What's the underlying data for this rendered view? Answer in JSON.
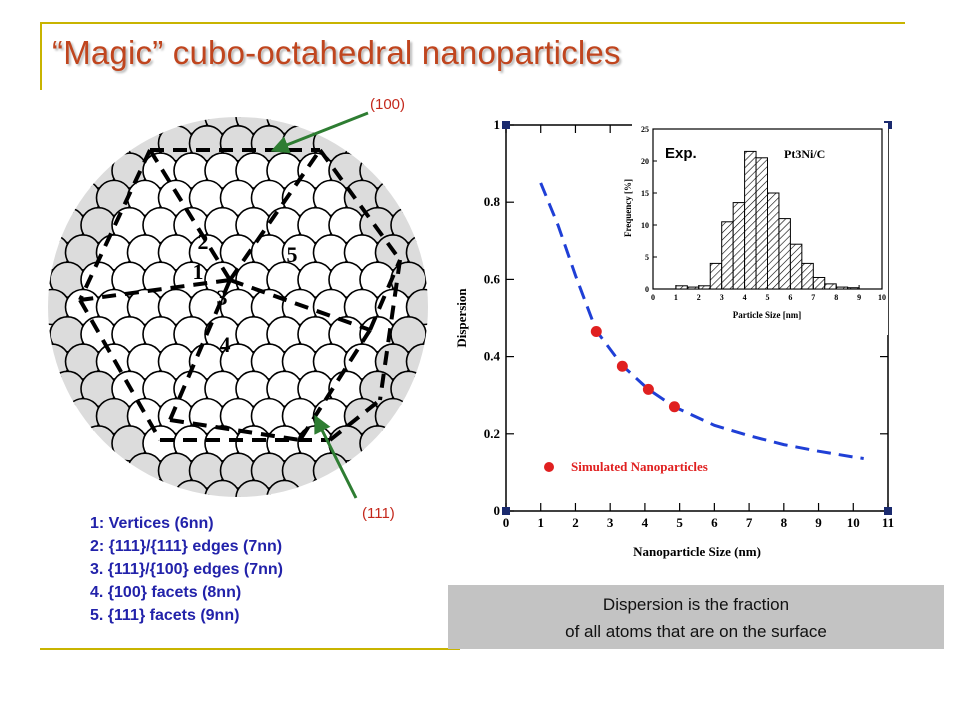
{
  "slide": {
    "title": "“Magic” cubo-octahedral nanoparticles",
    "facet_top": "(100)",
    "facet_bottom": "(111)",
    "legend": [
      "1: Vertices (6nn)",
      "2: {111}/{111} edges (7nn)",
      "3. {111}/{100} edges (7nn)",
      "4. {100} facets (8nn)",
      "5. {111} facets (9nn)"
    ],
    "site_numbers": [
      "1",
      "2",
      "3",
      "4",
      "5"
    ],
    "caption_line1": "Dispersion is the fraction",
    "caption_line2": "of all atoms that are on the surface",
    "colors": {
      "title": "#c0451e",
      "frame": "#c8b400",
      "arrow": "#2e7d32",
      "legend_text": "#2222aa",
      "facet_text": "#c4281c"
    }
  },
  "chart_data": [
    {
      "type": "scatter",
      "xlabel": "Nanoparticle Size (nm)",
      "ylabel": "Dispersion",
      "xlim": [
        0,
        11
      ],
      "ylim": [
        0,
        1
      ],
      "xticks": [
        0,
        1,
        2,
        3,
        4,
        5,
        6,
        7,
        8,
        9,
        10,
        11
      ],
      "yticks": [
        0,
        0.2,
        0.4,
        0.6,
        0.8,
        1
      ],
      "x_tick_labels": [
        "0",
        "1",
        "2",
        "3",
        "4",
        "5",
        "6",
        "7",
        "8",
        "9",
        "10",
        "11"
      ],
      "y_tick_labels": [
        "0",
        "0.2",
        "0.4",
        "0.6",
        "0.8",
        "1"
      ],
      "series": [
        {
          "name": "Simulated Nanoparticles",
          "kind": "scatter",
          "color": "#e02020",
          "x": [
            2.6,
            3.35,
            4.1,
            4.85
          ],
          "y": [
            0.465,
            0.375,
            0.315,
            0.27
          ]
        },
        {
          "kind": "dashed-line",
          "color": "#1f3fd6",
          "x": [
            1.0,
            1.5,
            2.0,
            2.6,
            3.35,
            4.1,
            4.85,
            6.0,
            7.0,
            8.0,
            9.0,
            10.0,
            10.3
          ],
          "y": [
            0.85,
            0.74,
            0.61,
            0.467,
            0.377,
            0.315,
            0.27,
            0.222,
            0.195,
            0.172,
            0.155,
            0.14,
            0.136
          ]
        }
      ],
      "legend": {
        "placement": "bottom-center"
      },
      "grid": false
    },
    {
      "type": "bar",
      "inset": true,
      "title": "Exp.",
      "subtitle": "Pt3Ni/C",
      "xlabel": "Particle Size [nm]",
      "ylabel": "Frequency [%]",
      "xlim": [
        0,
        10
      ],
      "ylim": [
        0,
        25
      ],
      "xticks": [
        0,
        1,
        2,
        3,
        4,
        5,
        6,
        7,
        8,
        9,
        10
      ],
      "yticks": [
        0,
        5,
        10,
        15,
        20,
        25
      ],
      "x_tick_labels": [
        "0",
        "1",
        "2",
        "3",
        "4",
        "5",
        "6",
        "7",
        "8",
        "9",
        "10"
      ],
      "y_tick_labels": [
        "0",
        "5",
        "10",
        "15",
        "20",
        "25"
      ],
      "bin_width": 0.5,
      "bin_starts": [
        1.0,
        1.5,
        2.0,
        2.5,
        3.0,
        3.5,
        4.0,
        4.5,
        5.0,
        5.5,
        6.0,
        6.5,
        7.0,
        7.5,
        8.0,
        8.5
      ],
      "values": [
        0.5,
        0.3,
        0.5,
        4.0,
        10.5,
        13.5,
        21.5,
        20.5,
        15.0,
        11.0,
        7.0,
        4.0,
        1.8,
        0.8,
        0.3,
        0.2
      ],
      "grid": false
    }
  ]
}
